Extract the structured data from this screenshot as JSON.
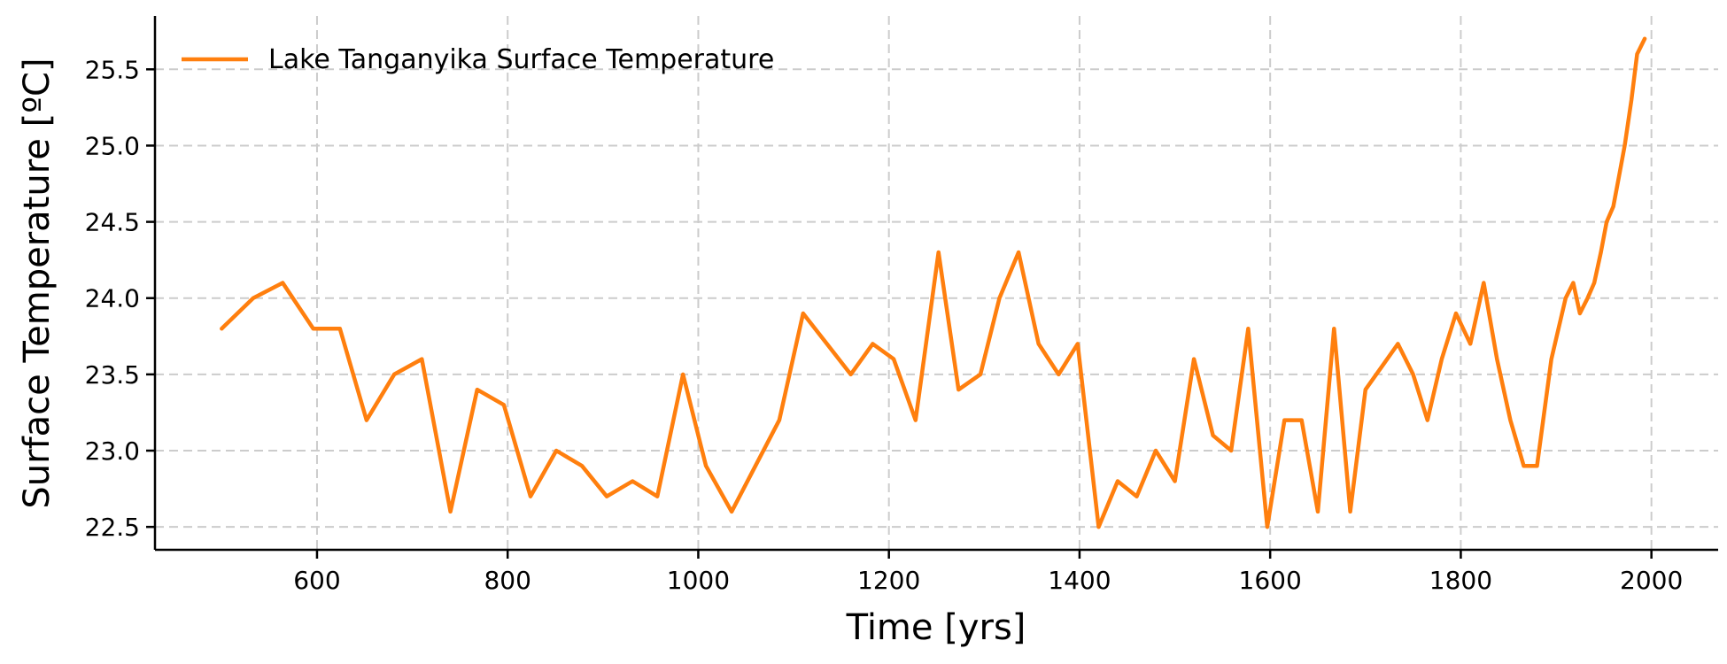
{
  "chart_data": {
    "type": "line",
    "xlabel": "Time [yrs]",
    "ylabel": "Surface Temperature [ºC]",
    "xlim": [
      430,
      2070
    ],
    "ylim": [
      22.35,
      25.85
    ],
    "xticks": [
      600,
      800,
      1000,
      1200,
      1400,
      1600,
      1800,
      2000
    ],
    "yticks": [
      22.5,
      23.0,
      23.5,
      24.0,
      24.5,
      25.0,
      25.5
    ],
    "xtick_labels": [
      "600",
      "800",
      "1000",
      "1200",
      "1400",
      "1600",
      "1800",
      "2000"
    ],
    "ytick_labels": [
      "22.5",
      "23.0",
      "23.5",
      "24.0",
      "24.5",
      "25.0",
      "25.5"
    ],
    "grid": true,
    "legend_position": "top-left",
    "series": [
      {
        "name": "Lake Tanganyika Surface Temperature",
        "color": "#ff7f0e",
        "x": [
          500,
          533,
          564,
          596,
          624,
          652,
          681,
          710,
          740,
          768,
          796,
          824,
          851,
          878,
          904,
          931,
          957,
          984,
          1008,
          1035,
          1060,
          1085,
          1110,
          1135,
          1160,
          1183,
          1205,
          1228,
          1252,
          1273,
          1296,
          1316,
          1336,
          1357,
          1378,
          1398,
          1420,
          1440,
          1460,
          1480,
          1500,
          1520,
          1540,
          1559,
          1577,
          1597,
          1615,
          1633,
          1650,
          1667,
          1684,
          1700,
          1717,
          1734,
          1750,
          1765,
          1780,
          1795,
          1810,
          1824,
          1838,
          1852,
          1866,
          1880,
          1895,
          1910,
          1918,
          1925,
          1933,
          1940,
          1947,
          1953,
          1960,
          1966,
          1972,
          1979,
          1985,
          1993
        ],
        "y": [
          23.8,
          24.0,
          24.1,
          23.8,
          23.8,
          23.2,
          23.5,
          23.6,
          22.6,
          23.4,
          23.3,
          22.7,
          23.0,
          22.9,
          22.7,
          22.8,
          22.7,
          23.5,
          22.9,
          22.6,
          22.9,
          23.2,
          23.9,
          23.7,
          23.5,
          23.7,
          23.6,
          23.2,
          24.3,
          23.4,
          23.5,
          24.0,
          24.3,
          23.7,
          23.5,
          23.7,
          22.5,
          22.8,
          22.7,
          23.0,
          22.8,
          23.6,
          23.1,
          23.0,
          23.8,
          22.5,
          23.2,
          23.2,
          22.6,
          23.8,
          22.6,
          23.4,
          23.55,
          23.7,
          23.5,
          23.2,
          23.6,
          23.9,
          23.7,
          24.1,
          23.6,
          23.2,
          22.9,
          22.9,
          23.6,
          24.0,
          24.1,
          23.9,
          24.0,
          24.1,
          24.3,
          24.5,
          24.6,
          24.8,
          25.0,
          25.3,
          25.6,
          25.7
        ]
      }
    ]
  }
}
